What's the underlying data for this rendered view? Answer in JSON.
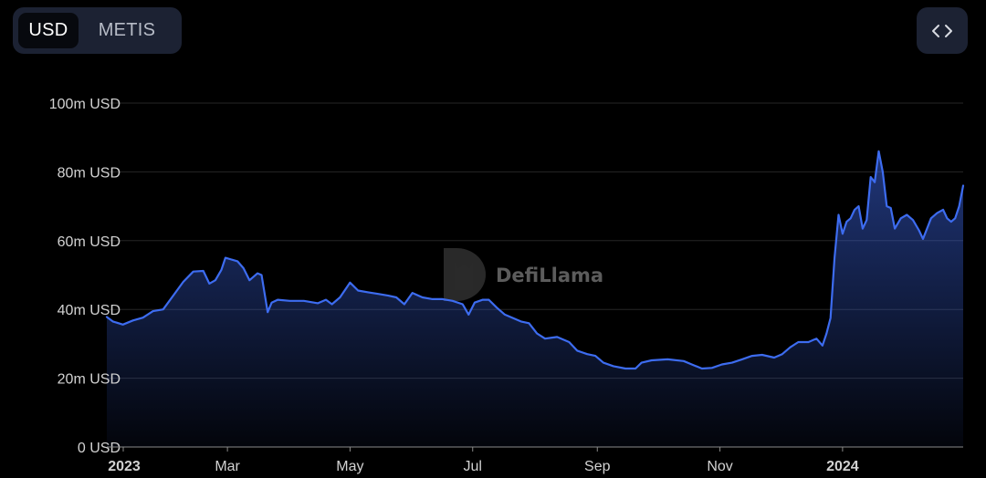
{
  "toggle": {
    "options": [
      {
        "label": "USD",
        "active": true
      },
      {
        "label": "METIS",
        "active": false
      }
    ]
  },
  "embed_icon": "code-brackets-icon",
  "watermark": {
    "text": "DefiLlama"
  },
  "colors": {
    "line": "#3d6cf0",
    "background": "#000000",
    "grid": "#262626",
    "button_bg": "#1c2233"
  },
  "chart_data": {
    "type": "area",
    "title": "",
    "xlabel": "",
    "ylabel": "",
    "unit": "USD",
    "ylim": [
      0,
      100
    ],
    "y_ticks": [
      {
        "value": 0,
        "label": "0 USD"
      },
      {
        "value": 20,
        "label": "20m USD"
      },
      {
        "value": 40,
        "label": "40m USD"
      },
      {
        "value": 60,
        "label": "60m USD"
      },
      {
        "value": 80,
        "label": "80m USD"
      },
      {
        "value": 100,
        "label": "100m USD"
      }
    ],
    "xlim": [
      "2023-01-01",
      "2024-03-01"
    ],
    "x_ticks": [
      {
        "date": "2023-01-01",
        "label": "2023",
        "bold": true
      },
      {
        "date": "2023-03-01",
        "label": "Mar",
        "bold": false
      },
      {
        "date": "2023-05-01",
        "label": "May",
        "bold": false
      },
      {
        "date": "2023-07-01",
        "label": "Jul",
        "bold": false
      },
      {
        "date": "2023-09-01",
        "label": "Sep",
        "bold": false
      },
      {
        "date": "2023-11-01",
        "label": "Nov",
        "bold": false
      },
      {
        "date": "2024-01-01",
        "label": "2024",
        "bold": true
      }
    ],
    "grid": true,
    "legend": "none",
    "series": [
      {
        "values_unit": "millions USD",
        "points": [
          [
            "2022-12-31",
            37.8
          ],
          [
            "2023-01-03",
            36.5
          ],
          [
            "2023-01-08",
            35.6
          ],
          [
            "2023-01-13",
            36.8
          ],
          [
            "2023-01-18",
            37.6
          ],
          [
            "2023-01-23",
            39.5
          ],
          [
            "2023-01-28",
            40.0
          ],
          [
            "2023-02-02",
            44.0
          ],
          [
            "2023-02-07",
            48.0
          ],
          [
            "2023-02-12",
            51.0
          ],
          [
            "2023-02-17",
            51.2
          ],
          [
            "2023-02-20",
            47.5
          ],
          [
            "2023-02-23",
            48.5
          ],
          [
            "2023-02-26",
            51.5
          ],
          [
            "2023-02-28",
            55.0
          ],
          [
            "2023-03-03",
            54.5
          ],
          [
            "2023-03-06",
            54.0
          ],
          [
            "2023-03-09",
            52.0
          ],
          [
            "2023-03-12",
            48.5
          ],
          [
            "2023-03-16",
            50.5
          ],
          [
            "2023-03-18",
            50.0
          ],
          [
            "2023-03-21",
            39.2
          ],
          [
            "2023-03-23",
            42.0
          ],
          [
            "2023-03-26",
            42.8
          ],
          [
            "2023-04-01",
            42.5
          ],
          [
            "2023-04-08",
            42.5
          ],
          [
            "2023-04-15",
            41.8
          ],
          [
            "2023-04-19",
            42.8
          ],
          [
            "2023-04-22",
            41.5
          ],
          [
            "2023-04-26",
            43.5
          ],
          [
            "2023-05-01",
            47.8
          ],
          [
            "2023-05-05",
            45.5
          ],
          [
            "2023-05-10",
            45.0
          ],
          [
            "2023-05-15",
            44.5
          ],
          [
            "2023-05-20",
            44.0
          ],
          [
            "2023-05-24",
            43.5
          ],
          [
            "2023-05-28",
            41.5
          ],
          [
            "2023-06-01",
            44.8
          ],
          [
            "2023-06-06",
            43.5
          ],
          [
            "2023-06-11",
            43.0
          ],
          [
            "2023-06-16",
            43.0
          ],
          [
            "2023-06-21",
            42.5
          ],
          [
            "2023-06-26",
            41.5
          ],
          [
            "2023-06-29",
            38.5
          ],
          [
            "2023-07-02",
            42.0
          ],
          [
            "2023-07-06",
            42.8
          ],
          [
            "2023-07-09",
            42.8
          ],
          [
            "2023-07-13",
            40.5
          ],
          [
            "2023-07-17",
            38.5
          ],
          [
            "2023-07-21",
            37.5
          ],
          [
            "2023-07-25",
            36.5
          ],
          [
            "2023-07-29",
            36.0
          ],
          [
            "2023-08-02",
            33.0
          ],
          [
            "2023-08-06",
            31.5
          ],
          [
            "2023-08-12",
            32.0
          ],
          [
            "2023-08-18",
            30.5
          ],
          [
            "2023-08-22",
            28.0
          ],
          [
            "2023-08-27",
            27.0
          ],
          [
            "2023-08-31",
            26.5
          ],
          [
            "2023-09-04",
            24.5
          ],
          [
            "2023-09-09",
            23.5
          ],
          [
            "2023-09-15",
            22.8
          ],
          [
            "2023-09-20",
            22.8
          ],
          [
            "2023-09-23",
            24.5
          ],
          [
            "2023-09-28",
            25.2
          ],
          [
            "2023-10-06",
            25.5
          ],
          [
            "2023-10-14",
            25.0
          ],
          [
            "2023-10-18",
            24.0
          ],
          [
            "2023-10-23",
            22.8
          ],
          [
            "2023-10-28",
            23.0
          ],
          [
            "2023-11-02",
            24.0
          ],
          [
            "2023-11-07",
            24.5
          ],
          [
            "2023-11-12",
            25.5
          ],
          [
            "2023-11-17",
            26.5
          ],
          [
            "2023-11-22",
            26.8
          ],
          [
            "2023-11-28",
            26.0
          ],
          [
            "2023-12-02",
            27.0
          ],
          [
            "2023-12-06",
            29.0
          ],
          [
            "2023-12-10",
            30.5
          ],
          [
            "2023-12-15",
            30.5
          ],
          [
            "2023-12-19",
            31.5
          ],
          [
            "2023-12-22",
            29.5
          ],
          [
            "2023-12-24",
            33.0
          ],
          [
            "2023-12-26",
            37.5
          ],
          [
            "2023-12-28",
            55.0
          ],
          [
            "2023-12-30",
            67.5
          ],
          [
            "2024-01-01",
            62.0
          ],
          [
            "2024-01-03",
            65.5
          ],
          [
            "2024-01-05",
            66.5
          ],
          [
            "2024-01-07",
            69.0
          ],
          [
            "2024-01-09",
            70.0
          ],
          [
            "2024-01-11",
            63.5
          ],
          [
            "2024-01-13",
            66.0
          ],
          [
            "2024-01-15",
            78.5
          ],
          [
            "2024-01-17",
            77.0
          ],
          [
            "2024-01-19",
            86.0
          ],
          [
            "2024-01-21",
            80.0
          ],
          [
            "2024-01-23",
            70.0
          ],
          [
            "2024-01-25",
            69.5
          ],
          [
            "2024-01-27",
            63.5
          ],
          [
            "2024-01-30",
            66.5
          ],
          [
            "2024-02-02",
            67.5
          ],
          [
            "2024-02-05",
            66.0
          ],
          [
            "2024-02-08",
            63.0
          ],
          [
            "2024-02-10",
            60.5
          ],
          [
            "2024-02-12",
            63.5
          ],
          [
            "2024-02-14",
            66.5
          ],
          [
            "2024-02-17",
            68.0
          ],
          [
            "2024-02-20",
            69.0
          ],
          [
            "2024-02-22",
            66.5
          ],
          [
            "2024-02-24",
            65.5
          ],
          [
            "2024-02-26",
            66.5
          ],
          [
            "2024-02-28",
            70.0
          ],
          [
            "2024-03-01",
            76.0
          ]
        ]
      }
    ]
  }
}
